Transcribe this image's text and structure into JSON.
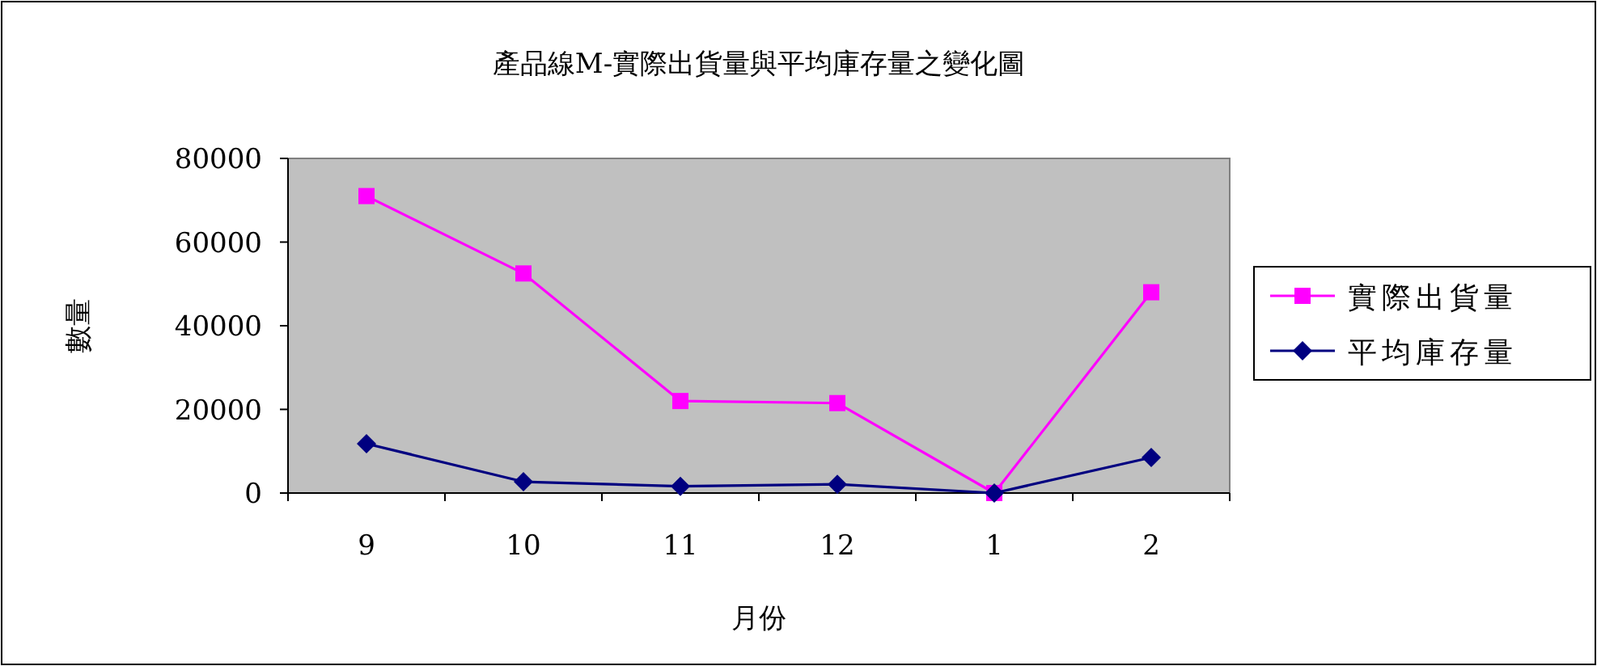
{
  "chart_data": {
    "type": "line",
    "title": "產品線M-實際出貨量與平均庫存量之變化圖",
    "xlabel": "月份",
    "ylabel": "數量",
    "categories": [
      "9",
      "10",
      "11",
      "12",
      "1",
      "2"
    ],
    "series": [
      {
        "name": "實際出貨量",
        "color": "#ff00ff",
        "marker": "square",
        "values": [
          71000,
          52500,
          22000,
          21500,
          0,
          48000
        ]
      },
      {
        "name": "平均庫存量",
        "color": "#000080",
        "marker": "diamond",
        "values": [
          11800,
          2700,
          1600,
          2100,
          0,
          8500
        ]
      }
    ],
    "ylim": [
      0,
      80000
    ],
    "yticks": [
      0,
      20000,
      40000,
      60000,
      80000
    ],
    "grid": false,
    "legend": "right"
  }
}
